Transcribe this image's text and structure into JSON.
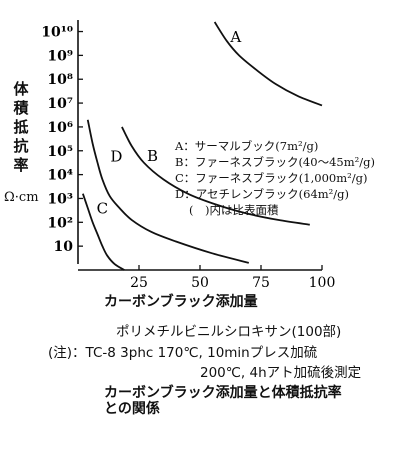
{
  "y_axis": {
    "label_chars": [
      "体",
      "積",
      "抵",
      "抗",
      "率"
    ],
    "unit": "Ω·cm"
  },
  "x_axis": {
    "label": "カーボンブラック添加量"
  },
  "legend": {
    "items": [
      "A：サーマルブック(7m²/g)",
      "B：ファーネスブラック(40～45m²/g)",
      "C：ファーネスブラック(1,000m²/g)",
      "D：アセチレンブラック(64m²/g)",
      "(　)内は比表面積"
    ]
  },
  "notes": {
    "line1": "ポリメチルビニルシロキサン(100部)",
    "line2": "(注)：TC-8 3phc 170℃, 10minプレス加硫",
    "line3": "200℃, 4hアト加硫後測定"
  },
  "caption": {
    "line1": "カーボンブラック添加量と体積抵抗率",
    "line2": "との関係"
  },
  "chart_data": {
    "type": "line",
    "xlabel": "カーボンブラック添加量",
    "ylabel": "体積抵抗率 Ω·cm",
    "x_ticks": [
      25,
      50,
      75,
      100
    ],
    "y_ticks": [
      "10",
      "10²",
      "10³",
      "10⁴",
      "10⁵",
      "10⁶",
      "10⁷",
      "10⁸",
      "10⁹",
      "10¹⁰"
    ],
    "xlim": [
      0,
      100
    ],
    "ylim": [
      0,
      10.4
    ],
    "y_scale": "log10",
    "series": [
      {
        "name": "A",
        "x": [
          56,
          61,
          66,
          73,
          81,
          90,
          100
        ],
        "y": [
          10.4,
          9.6,
          9.0,
          8.4,
          7.8,
          7.3,
          6.9
        ]
      },
      {
        "name": "B",
        "x": [
          18,
          22,
          27,
          35,
          45,
          55,
          68,
          82,
          95
        ],
        "y": [
          6.0,
          5.2,
          4.5,
          3.8,
          3.2,
          2.8,
          2.4,
          2.1,
          1.9
        ]
      },
      {
        "name": "C",
        "x": [
          2,
          4,
          6,
          8,
          10,
          12,
          15,
          19
        ],
        "y": [
          3.2,
          2.6,
          2.0,
          1.5,
          1.0,
          0.6,
          0.25,
          0.0
        ]
      },
      {
        "name": "D",
        "x": [
          4,
          6,
          8,
          10,
          13,
          17,
          22,
          30,
          40,
          55,
          70
        ],
        "y": [
          6.3,
          5.3,
          4.5,
          3.8,
          3.1,
          2.6,
          2.1,
          1.6,
          1.2,
          0.7,
          0.3
        ]
      }
    ]
  }
}
